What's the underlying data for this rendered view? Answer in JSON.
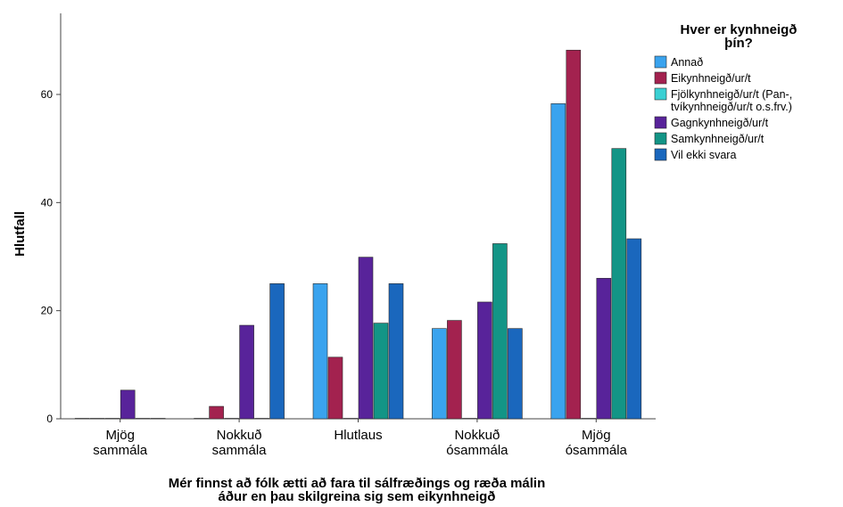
{
  "chart_data": {
    "type": "bar",
    "categories": [
      [
        "Mjög",
        "sammála"
      ],
      [
        "Nokkuð",
        "sammála"
      ],
      [
        "Hlutlaus"
      ],
      [
        "Nokkuð",
        "ósammála"
      ],
      [
        "Mjög",
        "ósammála"
      ]
    ],
    "series": [
      {
        "name": "Annað",
        "color": "#3aa3ee",
        "values": [
          0,
          0,
          25.0,
          16.7,
          58.3
        ]
      },
      {
        "name": "Eikynhneigð/ur/t",
        "color": "#a3224f",
        "values": [
          0,
          2.3,
          11.4,
          18.2,
          68.2
        ]
      },
      {
        "name": "Fjölkynhneigð/ur/t (Pan-, tvíkynhneigð/ur/t o.s.frv.)",
        "legend_lines": [
          "Fjölkynhneigð/ur/t (Pan-,",
          "tvíkynhneigð/ur/t o.s.frv.)"
        ],
        "color": "#3ad0d3",
        "values": [
          0,
          0,
          0,
          0,
          0
        ]
      },
      {
        "name": "Gagnkynhneigð/ur/t",
        "color": "#58239a",
        "values": [
          5.3,
          17.3,
          29.9,
          21.6,
          26.0
        ]
      },
      {
        "name": "Samkynhneigð/ur/t",
        "color": "#139586",
        "values": [
          0,
          0,
          17.7,
          32.4,
          50.0
        ]
      },
      {
        "name": "Vil ekki svara",
        "color": "#1a67bd",
        "values": [
          0,
          25.0,
          25.0,
          16.7,
          33.3
        ]
      }
    ],
    "xlabel_lines": [
      "Mér finnst að fólk ætti að fara til sálfræðings og ræða málin",
      "áður en þau skilgreina sig sem eikynhneigð"
    ],
    "ylabel": "Hlutfall",
    "ylim": [
      0,
      75
    ],
    "yticks": [
      0,
      20,
      40,
      60
    ],
    "grid": false,
    "legend": {
      "title_lines": [
        "Hver er kynhneigð",
        "þín?"
      ],
      "position": "top-right"
    }
  }
}
